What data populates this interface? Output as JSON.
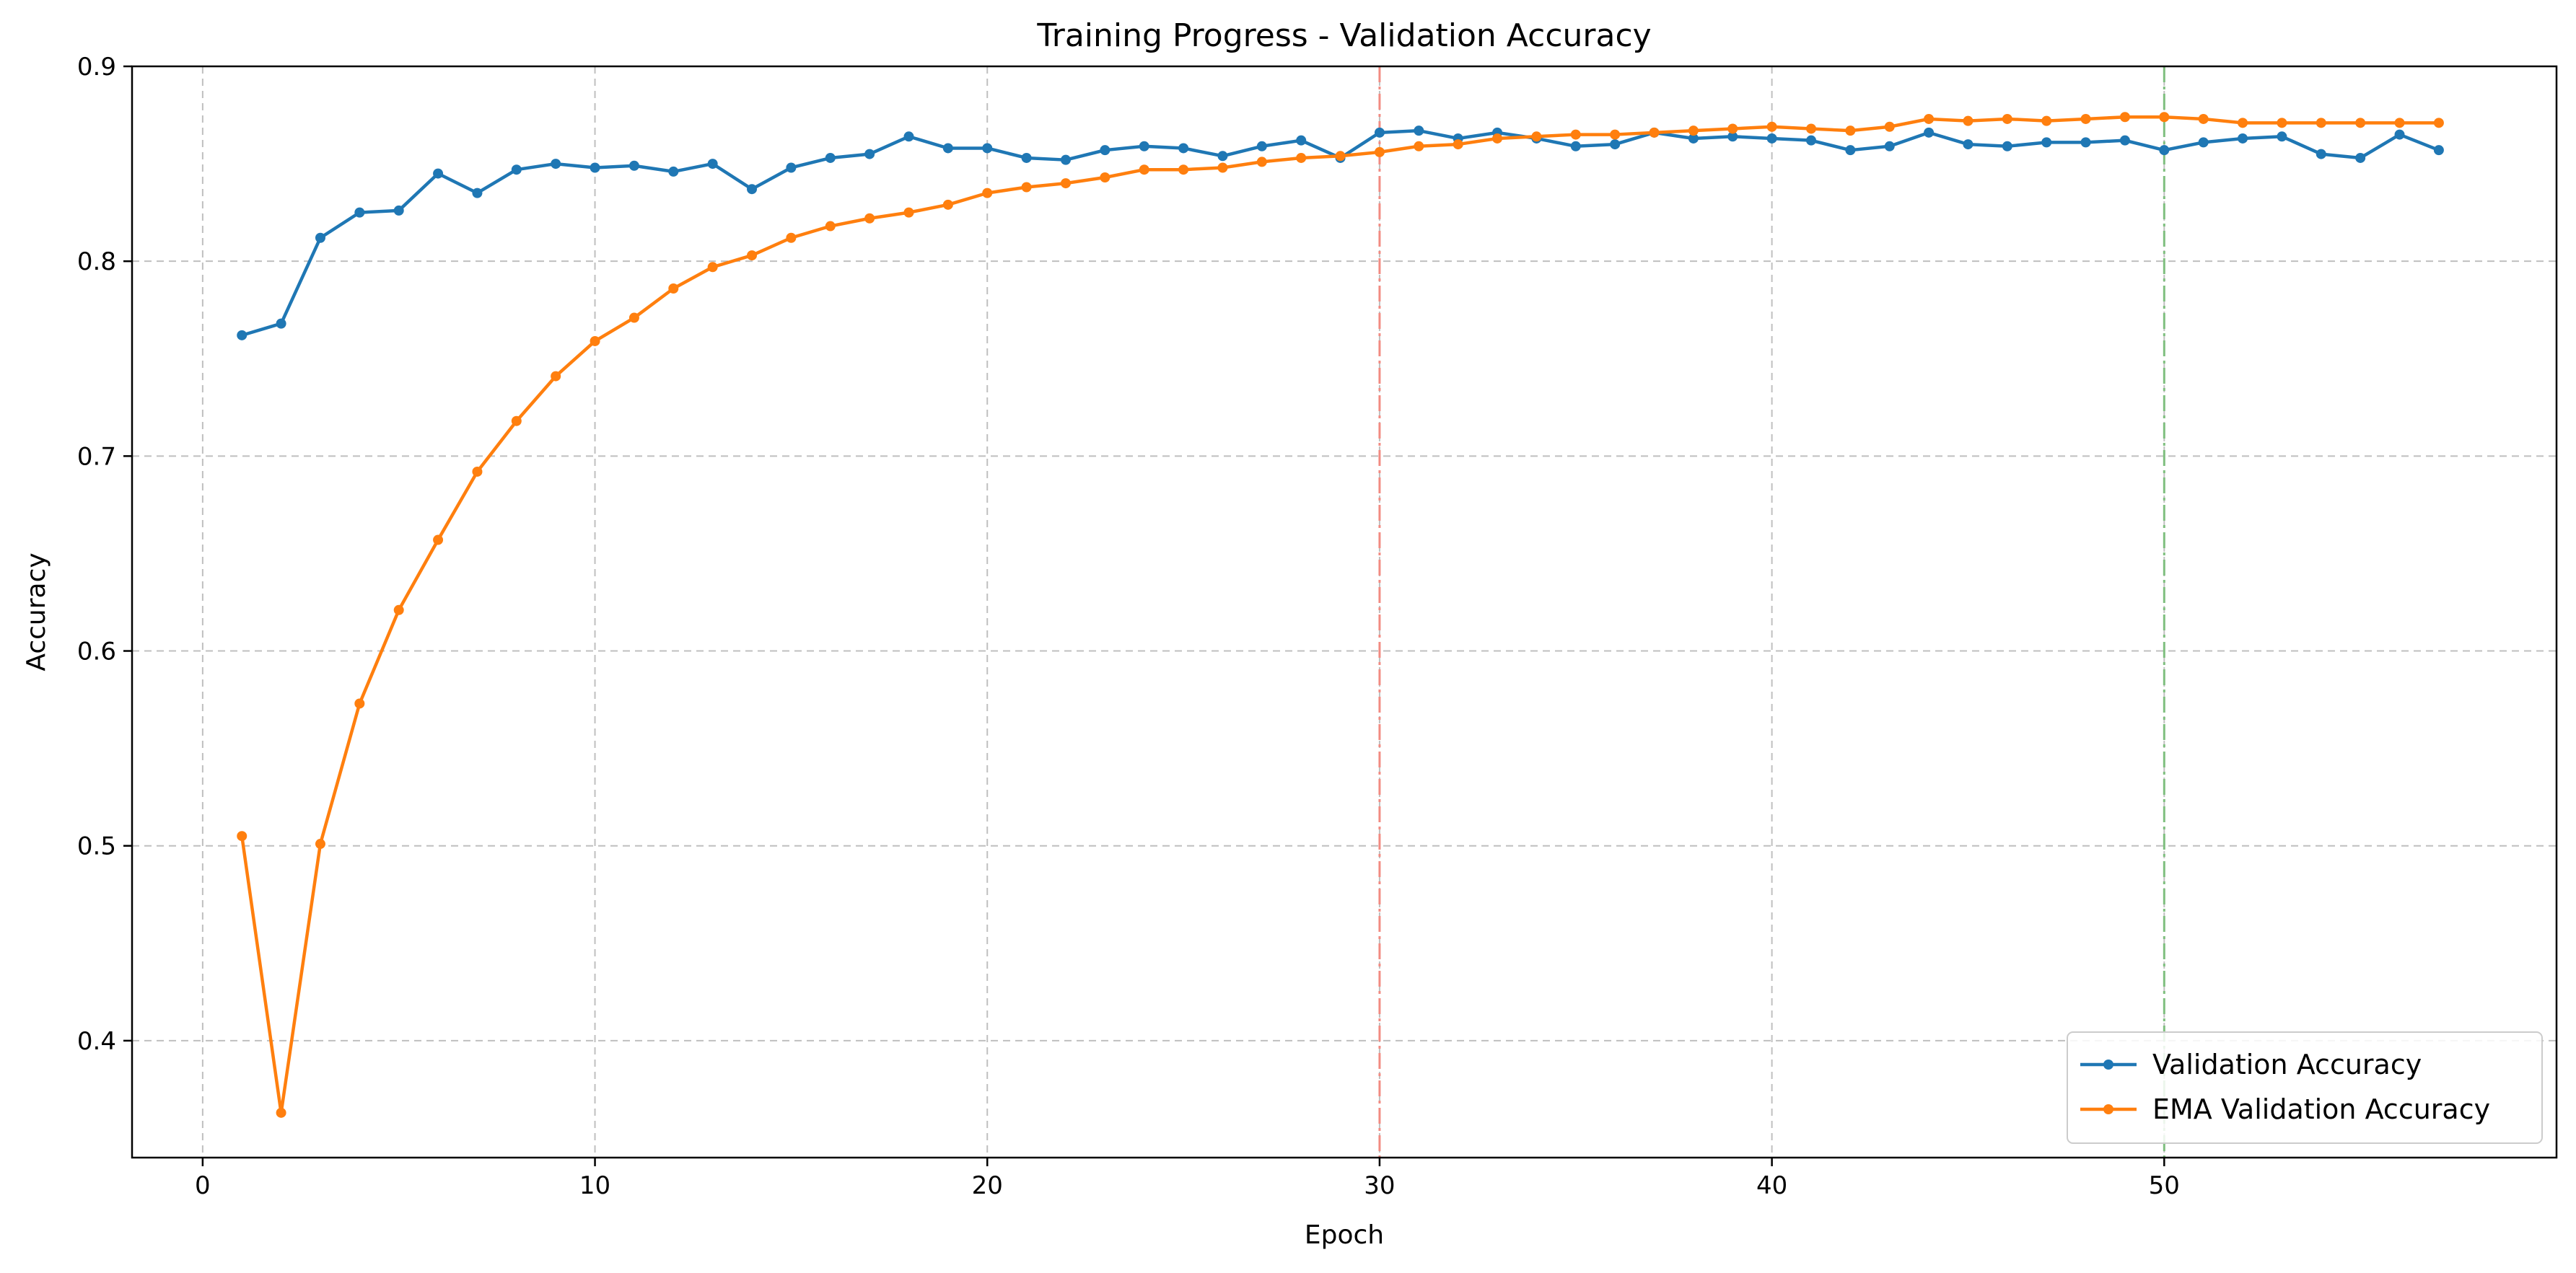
{
  "chart_data": {
    "type": "line",
    "title": "Training Progress - Validation Accuracy",
    "xlabel": "Epoch",
    "ylabel": "Accuracy",
    "xlim": [
      -1.8,
      60
    ],
    "ylim": [
      0.34,
      0.9
    ],
    "xticks": [
      0,
      10,
      20,
      30,
      40,
      50
    ],
    "yticks": [
      0.4,
      0.5,
      0.6,
      0.7,
      0.8,
      0.9
    ],
    "xtick_labels": [
      "0",
      "10",
      "20",
      "30",
      "40",
      "50"
    ],
    "ytick_labels": [
      "0.4",
      "0.5",
      "0.6",
      "0.7",
      "0.8",
      "0.9"
    ],
    "grid": true,
    "legend_position": "lower-right",
    "vertical_lines": [
      {
        "x": 30,
        "color": "#f28b82"
      },
      {
        "x": 50,
        "color": "#7fbf7f"
      }
    ],
    "x": [
      1,
      2,
      3,
      4,
      5,
      6,
      7,
      8,
      9,
      10,
      11,
      12,
      13,
      14,
      15,
      16,
      17,
      18,
      19,
      20,
      21,
      22,
      23,
      24,
      25,
      26,
      27,
      28,
      29,
      30,
      31,
      32,
      33,
      34,
      35,
      36,
      37,
      38,
      39,
      40,
      41,
      42,
      43,
      44,
      45,
      46,
      47,
      48,
      49,
      50,
      51,
      52,
      53,
      54,
      55,
      56,
      57
    ],
    "series": [
      {
        "name": "Validation Accuracy",
        "color": "#1f77b4",
        "values": [
          0.762,
          0.768,
          0.812,
          0.825,
          0.826,
          0.845,
          0.835,
          0.847,
          0.85,
          0.848,
          0.849,
          0.846,
          0.85,
          0.837,
          0.848,
          0.853,
          0.855,
          0.864,
          0.858,
          0.858,
          0.853,
          0.852,
          0.857,
          0.859,
          0.858,
          0.854,
          0.859,
          0.862,
          0.853,
          0.866,
          0.867,
          0.863,
          0.866,
          0.863,
          0.859,
          0.86,
          0.866,
          0.863,
          0.864,
          0.863,
          0.862,
          0.857,
          0.859,
          0.866,
          0.86,
          0.859,
          0.861,
          0.861,
          0.862,
          0.857,
          0.861,
          0.863,
          0.864,
          0.855,
          0.853,
          0.865,
          0.857
        ]
      },
      {
        "name": "EMA Validation Accuracy",
        "color": "#ff7f0e",
        "values": [
          0.505,
          0.363,
          0.501,
          0.573,
          0.621,
          0.657,
          0.692,
          0.718,
          0.741,
          0.759,
          0.771,
          0.786,
          0.797,
          0.803,
          0.812,
          0.818,
          0.822,
          0.825,
          0.829,
          0.835,
          0.838,
          0.84,
          0.843,
          0.847,
          0.847,
          0.848,
          0.851,
          0.853,
          0.854,
          0.856,
          0.859,
          0.86,
          0.863,
          0.864,
          0.865,
          0.865,
          0.866,
          0.867,
          0.868,
          0.869,
          0.868,
          0.867,
          0.869,
          0.873,
          0.872,
          0.873,
          0.872,
          0.873,
          0.874,
          0.874,
          0.873,
          0.871,
          0.871,
          0.871,
          0.871,
          0.871,
          0.871
        ]
      }
    ]
  }
}
